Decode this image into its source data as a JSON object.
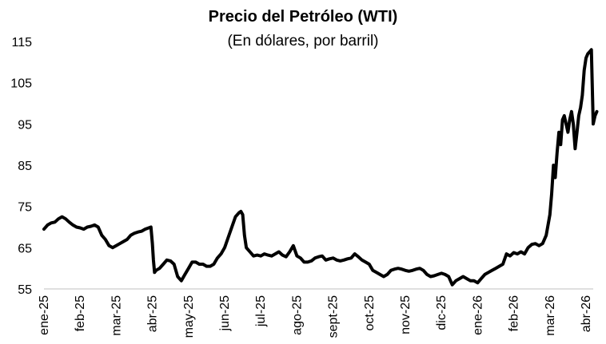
{
  "chart_data": {
    "type": "line",
    "title": "Precio del Petróleo (WTI)",
    "subtitle": "(En dólares, por barril)",
    "xlabel": "",
    "ylabel": "",
    "ylim": [
      55,
      115
    ],
    "yticks": [
      55,
      65,
      75,
      85,
      95,
      105,
      115
    ],
    "x_tick_labels": [
      "ene-25",
      "feb-25",
      "mar-25",
      "abr-25",
      "may-25",
      "jun-25",
      "jul-25",
      "ago-25",
      "sept-25",
      "oct-25",
      "nov-25",
      "dic-25",
      "ene-26",
      "feb-26",
      "mar-26",
      "abr-26"
    ],
    "grid": false,
    "legend": "none",
    "line_color": "#000000",
    "series": [
      {
        "x": [
          0,
          0.1,
          0.2,
          0.3,
          0.4,
          0.5,
          0.6,
          0.7,
          0.8,
          0.9,
          1.0,
          1.1,
          1.2,
          1.3,
          1.4,
          1.5,
          1.6,
          1.7,
          1.8,
          1.9,
          2.0,
          2.1,
          2.2,
          2.3,
          2.4,
          2.5,
          2.6,
          2.7,
          2.8,
          2.9,
          2.96,
          3.0,
          3.03,
          3.06,
          3.1,
          3.2,
          3.3,
          3.4,
          3.5,
          3.6,
          3.7,
          3.8,
          3.9,
          4.0,
          4.1,
          4.2,
          4.3,
          4.4,
          4.5,
          4.6,
          4.7,
          4.8,
          4.9,
          5.0,
          5.1,
          5.2,
          5.3,
          5.4,
          5.45,
          5.5,
          5.55,
          5.6,
          5.7,
          5.8,
          5.9,
          6.0,
          6.1,
          6.2,
          6.3,
          6.4,
          6.5,
          6.6,
          6.7,
          6.8,
          6.9,
          7.0,
          7.1,
          7.2,
          7.3,
          7.4,
          7.5,
          7.6,
          7.7,
          7.8,
          7.9,
          8.0,
          8.1,
          8.2,
          8.3,
          8.4,
          8.5,
          8.6,
          8.7,
          8.8,
          8.9,
          9.0,
          9.1,
          9.2,
          9.3,
          9.4,
          9.5,
          9.6,
          9.7,
          9.8,
          9.9,
          10.0,
          10.1,
          10.2,
          10.3,
          10.4,
          10.5,
          10.6,
          10.7,
          10.8,
          10.9,
          11.0,
          11.1,
          11.2,
          11.3,
          11.4,
          11.5,
          11.6,
          11.7,
          11.8,
          11.9,
          12.0,
          12.1,
          12.2,
          12.3,
          12.4,
          12.5,
          12.6,
          12.7,
          12.8,
          12.9,
          13.0,
          13.1,
          13.2,
          13.3,
          13.4,
          13.5,
          13.6,
          13.7,
          13.8,
          13.9,
          14.0,
          14.05,
          14.1,
          14.15,
          14.2,
          14.25,
          14.3,
          14.35,
          14.4,
          14.45,
          14.5,
          14.55,
          14.6,
          14.65,
          14.7,
          14.75,
          14.8,
          14.85,
          14.9,
          14.95,
          15.0,
          15.05,
          15.1,
          15.15,
          15.2,
          15.25,
          15.3
        ],
        "values": [
          69.5,
          70.5,
          71,
          71.2,
          72,
          72.5,
          72,
          71.2,
          70.5,
          70,
          69.8,
          69.5,
          70,
          70.2,
          70.5,
          70,
          68,
          67,
          65.5,
          65,
          65.5,
          66,
          66.5,
          67,
          68,
          68.5,
          68.8,
          69,
          69.5,
          69.8,
          70,
          66,
          62,
          59,
          59.5,
          60,
          61,
          62,
          61.8,
          61,
          58,
          57,
          58.5,
          60,
          61.5,
          61.5,
          61,
          61,
          60.5,
          60.5,
          61,
          62.5,
          63.5,
          65,
          67.5,
          70,
          72.5,
          73.5,
          73.8,
          73,
          68,
          65,
          64,
          63,
          63.2,
          63,
          63.5,
          63.2,
          63,
          63.5,
          64,
          63.2,
          62.8,
          64,
          65.5,
          63,
          62.5,
          61.5,
          61.5,
          61.8,
          62.5,
          62.8,
          63,
          62,
          62.3,
          62.5,
          62,
          61.8,
          62,
          62.3,
          62.5,
          63.5,
          62.8,
          62,
          61.5,
          61,
          59.5,
          59,
          58.5,
          58,
          58.5,
          59.5,
          59.8,
          60,
          59.8,
          59.5,
          59.3,
          59.5,
          59.8,
          60,
          59.5,
          58.5,
          58,
          58.2,
          58.5,
          58.8,
          58.5,
          58,
          56,
          57,
          57.5,
          58,
          57.5,
          57,
          57,
          56.5,
          57.5,
          58.5,
          59,
          59.5,
          60,
          60.5,
          61,
          63.5,
          63,
          63.8,
          63.5,
          64,
          63.5,
          65,
          65.8,
          66,
          65.5,
          66,
          68,
          73,
          78,
          85,
          82,
          88,
          93,
          90,
          96,
          97,
          95,
          93,
          96,
          98,
          95,
          89,
          93,
          97,
          99,
          102,
          108,
          111,
          112,
          112.5,
          113,
          95,
          97,
          98
        ]
      }
    ]
  }
}
